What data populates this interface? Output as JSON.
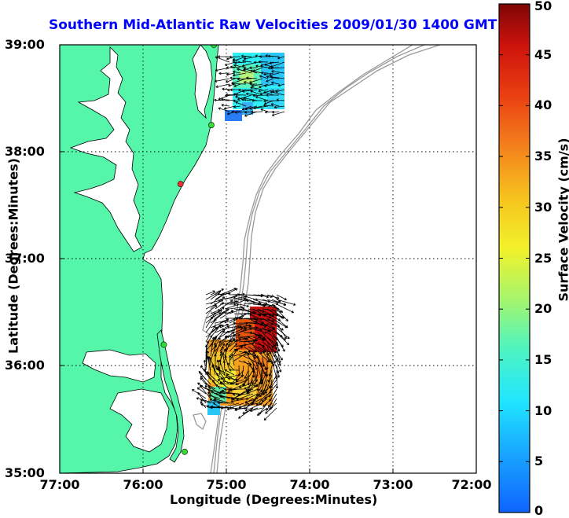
{
  "title": "Southern Mid-Atlantic Raw Velocities 2009/01/30 1400 GMT",
  "xlabel": "Longitude (Degrees:Minutes)",
  "ylabel": "Latitude (Degrees:Minutes)",
  "x_ticks": [
    "77:00",
    "76:00",
    "75:00",
    "74:00",
    "73:00",
    "72:00"
  ],
  "y_ticks": [
    "39:00",
    "38:00",
    "37:00",
    "36:00",
    "35:00"
  ],
  "colorbar": {
    "label": "Surface Velocity (cm/s)",
    "ticks": [
      "50",
      "45",
      "40",
      "35",
      "30",
      "25",
      "20",
      "15",
      "10",
      "5",
      "0"
    ],
    "range": [
      0,
      50
    ]
  },
  "colors": {
    "land": "#55f5aa",
    "water": "#ffffff",
    "title": "#0000ff",
    "bathymetry": "#9a9a9a",
    "station_active": "#33dd33",
    "station_inactive": "#ee3333"
  },
  "stations": [
    {
      "lon": -75.15,
      "lat": 39.0,
      "status": "active"
    },
    {
      "lon": -75.18,
      "lat": 38.25,
      "status": "active"
    },
    {
      "lon": -75.55,
      "lat": 37.7,
      "status": "inactive"
    },
    {
      "lon": -75.75,
      "lat": 36.2,
      "status": "active"
    },
    {
      "lon": -75.5,
      "lat": 35.2,
      "status": "active"
    }
  ],
  "icons": {
    "vector": "arrow-icon",
    "station": "radar-station-icon"
  }
}
